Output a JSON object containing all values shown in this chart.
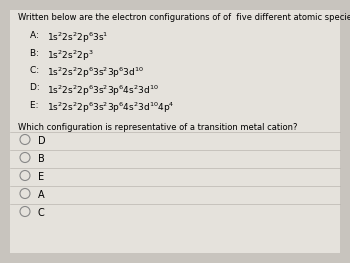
{
  "bg_color": "#c8c4be",
  "box_color": "#e5e2dc",
  "title": "Written below are the electron configurations of of  five different atomic species:",
  "configs": [
    {
      "label": "A: ",
      "text": "1s$^2$2s$^2$2p$^6$3s$^1$"
    },
    {
      "label": "B: ",
      "text": "1s$^2$2s$^2$2p$^3$"
    },
    {
      "label": "C: ",
      "text": "1s$^2$2s$^2$2p$^6$3s$^2$3p$^6$3d$^{10}$"
    },
    {
      "label": "D: ",
      "text": "1s$^2$2s$^2$2p$^6$3s$^2$3p$^6$4s$^2$3d$^{10}$"
    },
    {
      "label": "E: ",
      "text": "1s$^2$2s$^2$2p$^6$3s$^2$3p$^6$4s$^2$3d$^{10}$4p$^4$"
    }
  ],
  "question": "Which configuration is representative of a transition metal cation?",
  "options": [
    "D",
    "B",
    "E",
    "A",
    "C"
  ],
  "title_fontsize": 6.0,
  "label_fontsize": 6.5,
  "config_fontsize": 6.5,
  "question_fontsize": 6.0,
  "option_fontsize": 7.0
}
